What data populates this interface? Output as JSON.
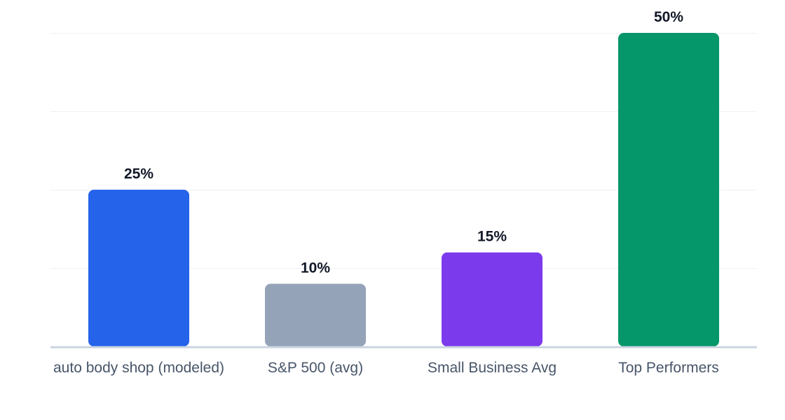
{
  "chart_data": {
    "type": "bar",
    "title": "",
    "xlabel": "",
    "ylabel": "",
    "categories": [
      "auto body shop (modeled)",
      "S&P 500 (avg)",
      "Small Business Avg",
      "Top Performers"
    ],
    "values": [
      25,
      10,
      15,
      50
    ],
    "value_labels": [
      "25%",
      "10%",
      "15%",
      "50%"
    ],
    "colors": [
      "#2563eb",
      "#94a3b8",
      "#7c3aed",
      "#059669"
    ],
    "ylim": [
      0,
      50
    ],
    "grid": true,
    "grid_step": 12.5,
    "legend": "none"
  }
}
